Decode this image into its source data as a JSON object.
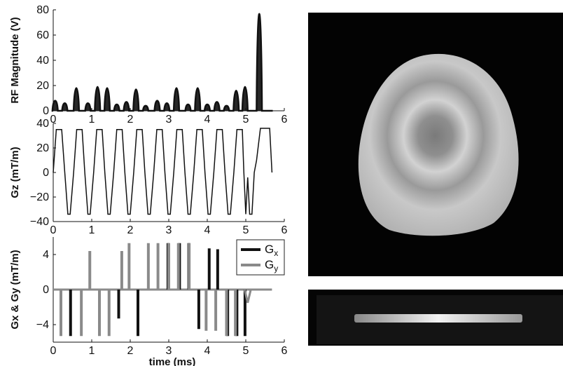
{
  "chart_data": [
    {
      "type": "line",
      "ylabel": "RF Magnitude (V)",
      "xlabel": "",
      "xlim": [
        0,
        6
      ],
      "ylim": [
        0,
        80
      ],
      "xticks": [
        "0",
        "1",
        "2",
        "3",
        "4",
        "5",
        "6"
      ],
      "yticks": [
        "0",
        "20",
        "40",
        "60",
        "80"
      ],
      "grid": false,
      "series": [
        {
          "pulse_width_ms": 0.14,
          "pulses": [
            [
              0.05,
              8
            ],
            [
              0.3,
              6
            ],
            [
              0.6,
              18
            ],
            [
              0.9,
              6
            ],
            [
              1.15,
              19
            ],
            [
              1.4,
              18
            ],
            [
              1.65,
              5
            ],
            [
              1.9,
              7
            ],
            [
              2.15,
              17
            ],
            [
              2.4,
              4
            ],
            [
              2.7,
              8
            ],
            [
              2.95,
              6
            ],
            [
              3.2,
              18
            ],
            [
              3.5,
              5
            ],
            [
              3.75,
              18
            ],
            [
              4.0,
              5
            ],
            [
              4.25,
              7
            ],
            [
              4.5,
              4
            ],
            [
              4.75,
              16
            ],
            [
              4.98,
              19
            ],
            [
              5.35,
              77
            ]
          ]
        }
      ]
    },
    {
      "type": "line",
      "ylabel": "Gz (mT/m)",
      "xlabel": "",
      "xlim": [
        0,
        6
      ],
      "ylim": [
        -40,
        40
      ],
      "xticks": [
        "0",
        "1",
        "2",
        "3",
        "4",
        "5",
        "6"
      ],
      "yticks": [
        "40",
        "20",
        "0",
        "−20",
        "−40"
      ],
      "grid": false,
      "series": [
        {
          "x": [
            0,
            0.08,
            0.22,
            0.3,
            0.38,
            0.44,
            0.53,
            0.61,
            0.75,
            0.82,
            0.9,
            0.96,
            1.05,
            1.13,
            1.27,
            1.34,
            1.42,
            1.48,
            1.57,
            1.65,
            1.79,
            1.86,
            1.94,
            2.0,
            2.09,
            2.17,
            2.31,
            2.38,
            2.46,
            2.52,
            2.61,
            2.69,
            2.83,
            2.9,
            2.98,
            3.04,
            3.13,
            3.21,
            3.35,
            3.42,
            3.5,
            3.56,
            3.65,
            3.73,
            3.87,
            3.94,
            4.02,
            4.08,
            4.17,
            4.25,
            4.39,
            4.46,
            4.54,
            4.6,
            4.69,
            4.77,
            4.91,
            4.95,
            5.0,
            5.05,
            5.1,
            5.16,
            5.22,
            5.28,
            5.38,
            5.62,
            5.68
          ],
          "y": [
            0,
            35,
            35,
            0,
            -34,
            -34,
            0,
            35,
            35,
            0,
            -34,
            -34,
            0,
            35,
            35,
            0,
            -34,
            -34,
            0,
            35,
            35,
            0,
            -34,
            -34,
            0,
            35,
            35,
            0,
            -34,
            -34,
            0,
            35,
            35,
            0,
            -34,
            -34,
            0,
            35,
            35,
            0,
            -34,
            -34,
            0,
            35,
            35,
            0,
            -34,
            -34,
            0,
            35,
            35,
            0,
            -34,
            -34,
            0,
            35,
            35,
            0,
            -34,
            -4,
            -34,
            -34,
            0,
            10,
            36,
            36,
            0
          ]
        }
      ]
    },
    {
      "type": "line",
      "ylabel": "Gx & Gy (mT/m)",
      "xlabel": "time (ms)",
      "xlim": [
        0,
        6
      ],
      "ylim": [
        -6,
        6
      ],
      "xticks": [
        "0",
        "1",
        "2",
        "3",
        "4",
        "5",
        "6"
      ],
      "yticks": [
        "4",
        "0",
        "−4"
      ],
      "grid": false,
      "legend": {
        "position": "top-right"
      },
      "series": [
        {
          "name": "Gx",
          "color": "#111111",
          "spikes": [
            [
              0.45,
              -5.3
            ],
            [
              1.7,
              -3.3
            ],
            [
              2.2,
              -5.3
            ],
            [
              2.98,
              5.3
            ],
            [
              3.28,
              5.3
            ],
            [
              3.52,
              5.3
            ],
            [
              3.78,
              -4.5
            ],
            [
              4.05,
              4.7
            ],
            [
              4.27,
              4.6
            ],
            [
              4.53,
              -5.3
            ],
            [
              4.77,
              -5.3
            ],
            [
              4.98,
              -5.3
            ]
          ]
        },
        {
          "name": "Gy",
          "color": "#8a8a8a",
          "spikes": [
            [
              0.2,
              -5.3
            ],
            [
              0.73,
              -5.3
            ],
            [
              0.95,
              4.4
            ],
            [
              1.2,
              -5.3
            ],
            [
              1.45,
              -5.3
            ],
            [
              1.78,
              4.4
            ],
            [
              1.97,
              5.3
            ],
            [
              2.47,
              5.3
            ],
            [
              2.72,
              5.3
            ],
            [
              3.0,
              5.3
            ],
            [
              3.25,
              5.3
            ],
            [
              3.53,
              5.3
            ],
            [
              3.97,
              -4.7
            ],
            [
              4.22,
              -4.7
            ],
            [
              4.5,
              -5.3
            ],
            [
              4.73,
              -5.3
            ]
          ],
          "dip": [
            5.05,
            -1.5
          ]
        }
      ]
    }
  ],
  "images": [
    {
      "icon": "mri-axial-slice-image"
    },
    {
      "icon": "mri-slab-profile-image"
    }
  ],
  "legend": {
    "gx_main": "G",
    "gx_sub": "x",
    "gy_main": "G",
    "gy_sub": "y"
  }
}
